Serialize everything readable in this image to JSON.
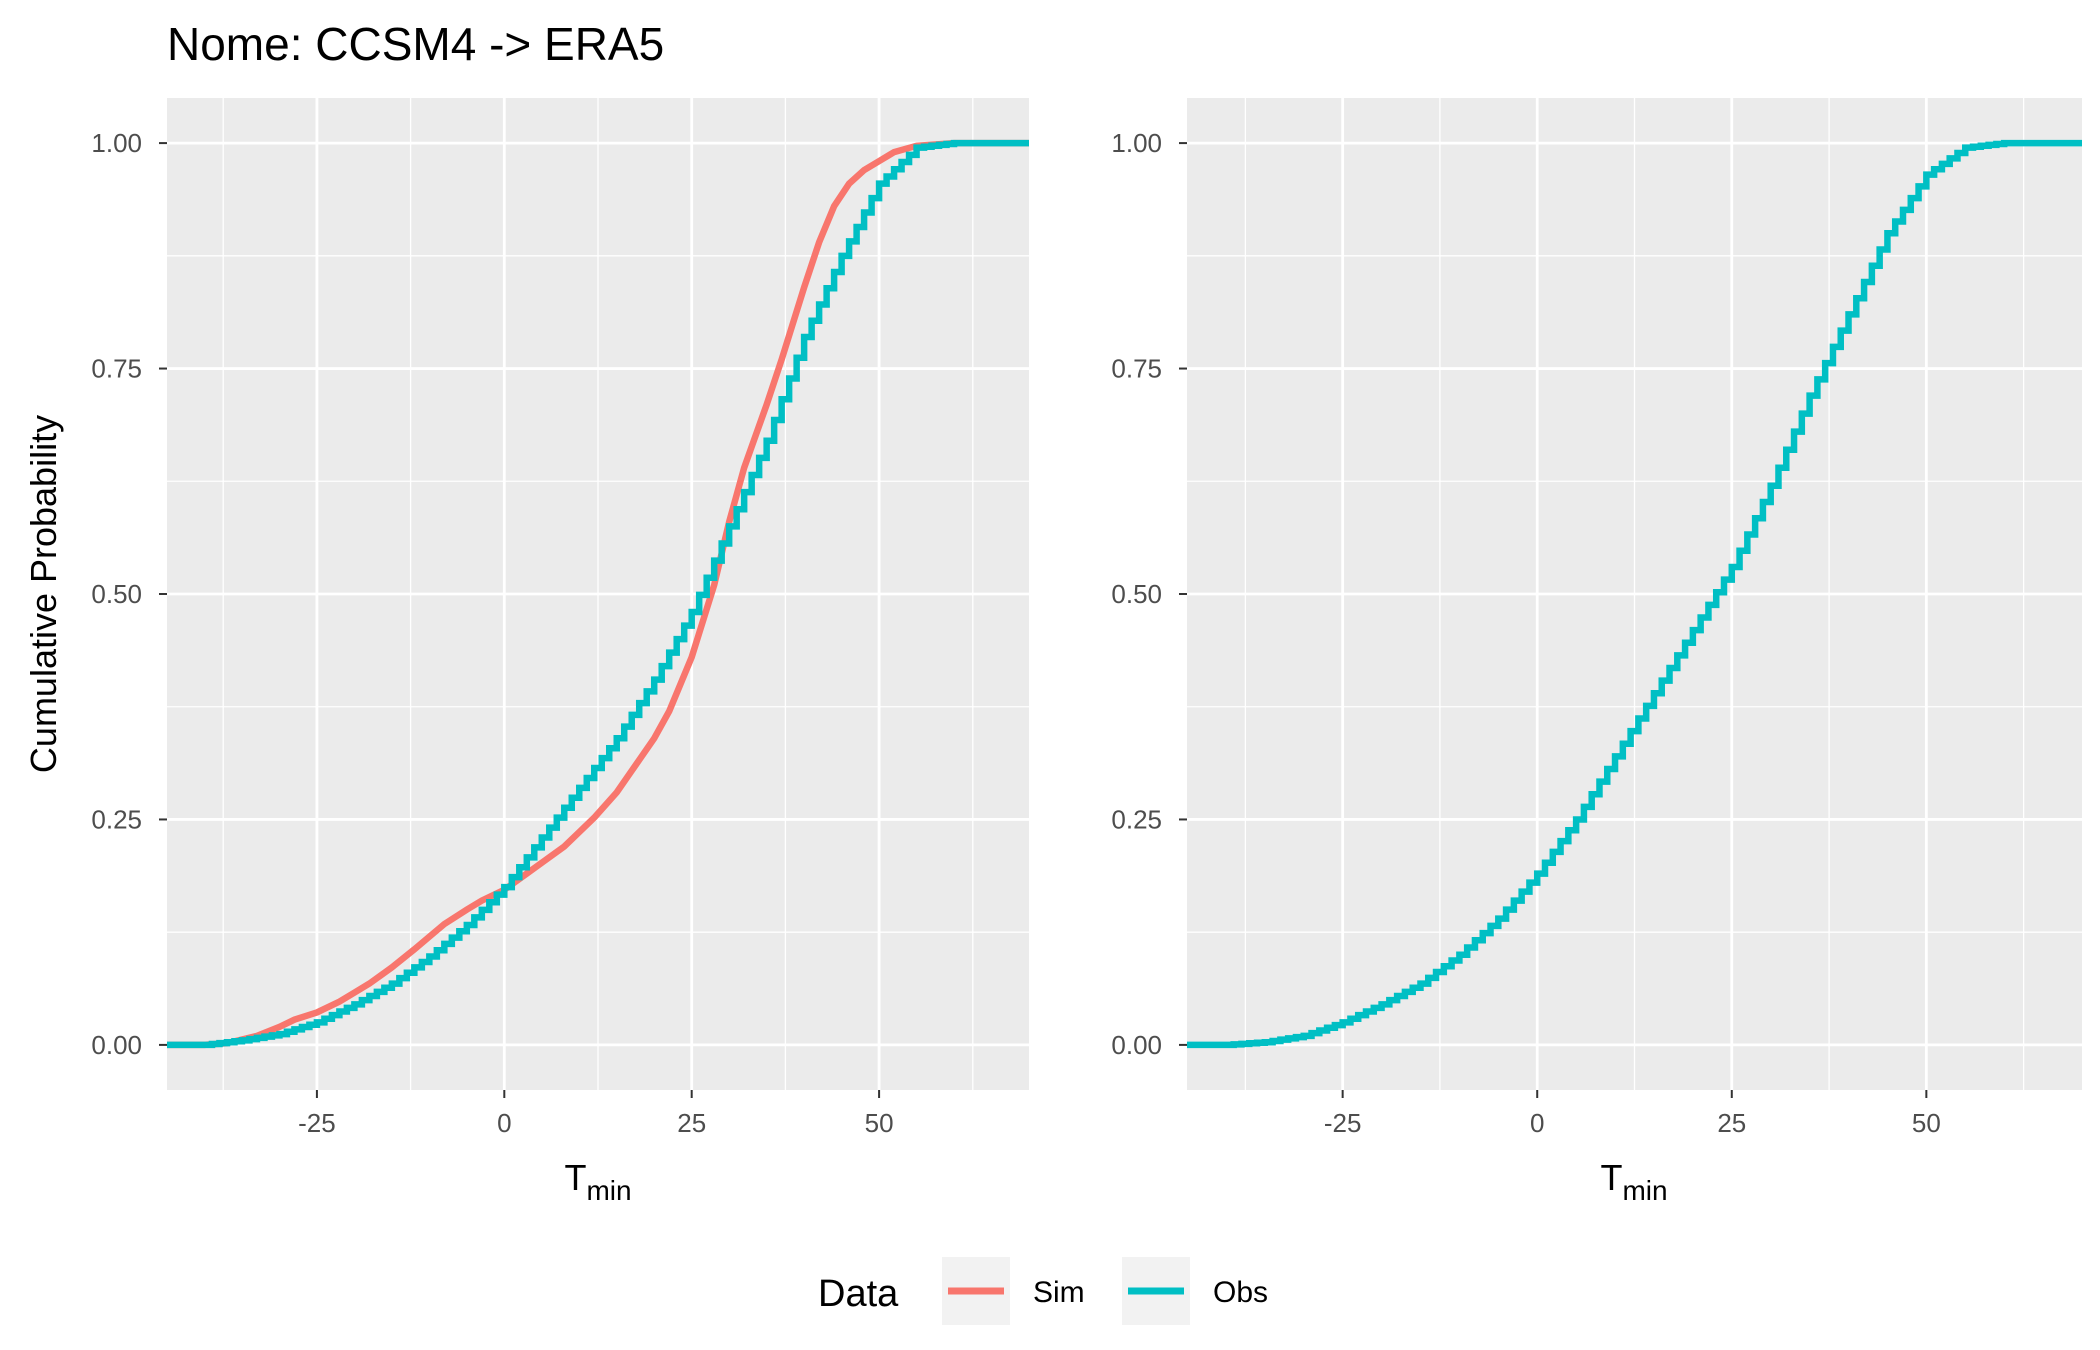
{
  "chart_data": {
    "type": "line",
    "title": "Nome: CCSM4 -> ERA5",
    "ylabel": "Cumulative Probability",
    "xlabel": {
      "main": "T",
      "sub": "min"
    },
    "xlim": [
      -45,
      70
    ],
    "ylim": [
      -0.05,
      1.05
    ],
    "x_ticks": [
      -25,
      0,
      25,
      50
    ],
    "x_tick_labels": [
      "-25",
      "0",
      "25",
      "50"
    ],
    "y_ticks": [
      0,
      0.25,
      0.5,
      0.75,
      1
    ],
    "y_tick_labels": [
      "0.00",
      "0.25",
      "0.50",
      "0.75",
      "1.00"
    ],
    "grid": true,
    "background": "#ebebeb",
    "legend": {
      "title": "Data",
      "position": "bottom",
      "entries": [
        {
          "name": "Sim",
          "color": "#F8766D"
        },
        {
          "name": "Obs",
          "color": "#00BFC4"
        }
      ]
    },
    "panels": [
      {
        "id": "left",
        "series": [
          {
            "name": "Sim",
            "color": "#F8766D",
            "step": false,
            "x": [
              -45,
              -40,
              -37,
              -35,
              -33,
              -30,
              -28,
              -25,
              -22,
              -20,
              -18,
              -15,
              -12,
              -10,
              -8,
              -5,
              -3,
              0,
              3,
              5,
              8,
              10,
              12,
              15,
              18,
              20,
              22,
              25,
              28,
              30,
              32,
              35,
              37,
              40,
              42,
              44,
              46,
              48,
              50,
              52,
              55,
              60,
              70
            ],
            "y": [
              0.0,
              0.0,
              0.002,
              0.006,
              0.01,
              0.02,
              0.028,
              0.036,
              0.048,
              0.058,
              0.068,
              0.086,
              0.106,
              0.12,
              0.134,
              0.15,
              0.16,
              0.172,
              0.19,
              0.202,
              0.22,
              0.236,
              0.252,
              0.28,
              0.316,
              0.34,
              0.37,
              0.43,
              0.51,
              0.58,
              0.64,
              0.71,
              0.76,
              0.84,
              0.89,
              0.93,
              0.955,
              0.97,
              0.98,
              0.99,
              0.997,
              1.0,
              1.0
            ]
          },
          {
            "name": "Obs",
            "color": "#00BFC4",
            "step": true,
            "x": [
              -45,
              -40,
              -35,
              -30,
              -25,
              -20,
              -15,
              -10,
              -5,
              0,
              5,
              10,
              15,
              20,
              25,
              30,
              35,
              40,
              45,
              50,
              55,
              60,
              70
            ],
            "y": [
              0.0,
              0.0,
              0.005,
              0.012,
              0.025,
              0.045,
              0.068,
              0.098,
              0.133,
              0.175,
              0.23,
              0.285,
              0.34,
              0.405,
              0.48,
              0.575,
              0.67,
              0.785,
              0.875,
              0.955,
              0.995,
              1.0,
              1.0
            ]
          }
        ]
      },
      {
        "id": "right",
        "series": [
          {
            "name": "Obs",
            "color": "#00BFC4",
            "step": true,
            "x": [
              -45,
              -40,
              -35,
              -30,
              -25,
              -20,
              -15,
              -10,
              -5,
              0,
              5,
              10,
              15,
              20,
              25,
              30,
              35,
              40,
              45,
              50,
              55,
              60,
              70
            ],
            "y": [
              0.0,
              0.0,
              0.003,
              0.01,
              0.025,
              0.045,
              0.068,
              0.1,
              0.14,
              0.19,
              0.25,
              0.32,
              0.39,
              0.46,
              0.53,
              0.62,
              0.72,
              0.81,
              0.9,
              0.965,
              0.995,
              1.0,
              1.0
            ]
          }
        ]
      }
    ]
  }
}
